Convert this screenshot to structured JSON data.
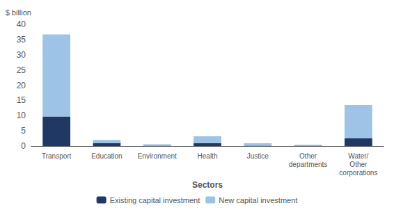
{
  "chart_data": {
    "type": "bar",
    "stacked": true,
    "xlabel": "Sectors",
    "ylabel": "$ billion",
    "categories": [
      "Transport",
      "Education",
      "Environment",
      "Health",
      "Justice",
      "Other\ndepartments",
      "Water/\nOther\ncorporations"
    ],
    "series": [
      {
        "name": "Existing capital investment",
        "color": "#1F3864",
        "values": [
          9.7,
          1.0,
          0.1,
          1.0,
          0.1,
          0.1,
          2.5
        ]
      },
      {
        "name": "New capital investment",
        "color": "#9DC3E6",
        "values": [
          27.0,
          1.0,
          0.5,
          2.2,
          0.8,
          0.3,
          11.0
        ]
      }
    ],
    "ylim": [
      0,
      40
    ],
    "yticks": [
      0,
      5,
      10,
      15,
      20,
      25,
      30,
      35,
      40
    ],
    "grid": false,
    "legend": "bottom"
  }
}
